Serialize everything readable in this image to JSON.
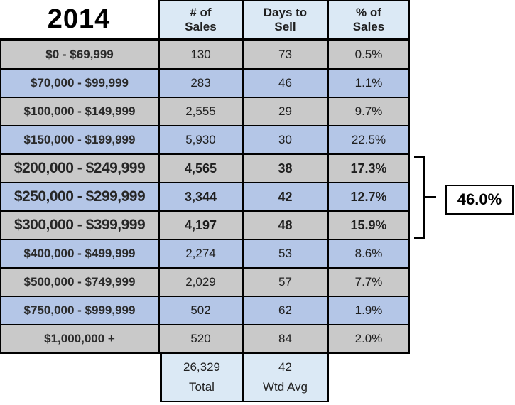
{
  "chart_data": {
    "type": "table",
    "title": "2014",
    "columns": [
      "# of\nSales",
      "Days to\nSell",
      "% of\nSales"
    ],
    "row_label_header": "",
    "rows": [
      {
        "label": "$0 - $69,999",
        "sales": "130",
        "days": "73",
        "pct": "0.5%"
      },
      {
        "label": "$70,000 - $99,999",
        "sales": "283",
        "days": "46",
        "pct": "1.1%"
      },
      {
        "label": "$100,000 - $149,999",
        "sales": "2,555",
        "days": "29",
        "pct": "9.7%"
      },
      {
        "label": "$150,000 - $199,999",
        "sales": "5,930",
        "days": "30",
        "pct": "22.5%"
      },
      {
        "label": "$200,000 - $249,999",
        "sales": "4,565",
        "days": "38",
        "pct": "17.3%"
      },
      {
        "label": "$250,000 - $299,999",
        "sales": "3,344",
        "days": "42",
        "pct": "12.7%"
      },
      {
        "label": "$300,000 - $399,999",
        "sales": "4,197",
        "days": "48",
        "pct": "15.9%"
      },
      {
        "label": "$400,000 - $499,999",
        "sales": "2,274",
        "days": "53",
        "pct": "8.6%"
      },
      {
        "label": "$500,000 - $749,999",
        "sales": "2,029",
        "days": "57",
        "pct": "7.7%"
      },
      {
        "label": "$750,000 - $999,999",
        "sales": "502",
        "days": "62",
        "pct": "1.9%"
      },
      {
        "label": "$1,000,000 +",
        "sales": "520",
        "days": "84",
        "pct": "2.0%"
      }
    ],
    "totals": {
      "sales_total": "26,329",
      "sales_total_label": "Total",
      "days_wtd_avg": "42",
      "days_wtd_avg_label": "Wtd Avg"
    },
    "highlight_group": {
      "row_labels": [
        "$200,000 - $249,999",
        "$250,000 - $299,999",
        "$300,000 - $399,999"
      ],
      "combined_pct": "46.0%"
    },
    "colors": {
      "gray_row": "#c9c9c9",
      "blue_row": "#b4c6e7",
      "header_blue": "#dbe9f5",
      "border": "#000000"
    }
  }
}
